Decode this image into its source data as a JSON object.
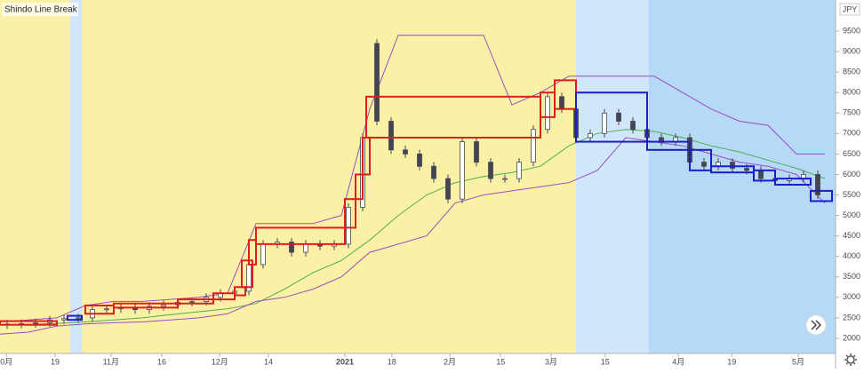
{
  "chart_data": {
    "type": "candlestick",
    "title": "Shindo Line Break",
    "currency": "JPY",
    "xlim": [
      0,
      117.5
    ],
    "ylim": [
      1630,
      10260
    ],
    "yticks": [
      2000,
      2500,
      3000,
      3500,
      4000,
      4500,
      5000,
      5500,
      6000,
      6500,
      7000,
      7500,
      8000,
      8500,
      9000,
      9500
    ],
    "xticks": [
      {
        "value": 0.9,
        "label": "0月"
      },
      {
        "value": 7.75,
        "label": "19"
      },
      {
        "value": 15.6,
        "label": "11月"
      },
      {
        "value": 22.75,
        "label": "16"
      },
      {
        "value": 30.9,
        "label": "12月"
      },
      {
        "value": 37.75,
        "label": "14"
      },
      {
        "value": 48.5,
        "label": "2021"
      },
      {
        "value": 55.1,
        "label": "18"
      },
      {
        "value": 63.25,
        "label": "2月"
      },
      {
        "value": 70.4,
        "label": "15"
      },
      {
        "value": 77.5,
        "label": "3月"
      },
      {
        "value": 85.1,
        "label": "15"
      },
      {
        "value": 95.4,
        "label": "4月"
      },
      {
        "value": 102.9,
        "label": "19"
      },
      {
        "value": 112.25,
        "label": "5月"
      }
    ],
    "candles": {
      "up_color": "#ffffff",
      "down_color": "#434651",
      "x": [
        1,
        3,
        5,
        7,
        9,
        11,
        13,
        15,
        17,
        19,
        21,
        23,
        25,
        27,
        29,
        31,
        33,
        35,
        37,
        39,
        41,
        43,
        45,
        47,
        49,
        51,
        53,
        55,
        57,
        59,
        61,
        63,
        65,
        67,
        69,
        71,
        73,
        75,
        77,
        79,
        81,
        83,
        85,
        87,
        89,
        91,
        93,
        95,
        97,
        99,
        101,
        103,
        105,
        107,
        109,
        111,
        113,
        115
      ],
      "open": [
        2330,
        2350,
        2360,
        2380,
        2450,
        2480,
        2500,
        2700,
        2720,
        2760,
        2700,
        2780,
        2820,
        2880,
        2900,
        3000,
        3100,
        3150,
        3800,
        4300,
        4350,
        4100,
        4300,
        4250,
        4300,
        5200,
        9200,
        7300,
        6600,
        6500,
        6200,
        5900,
        5400,
        6800,
        6300,
        5900,
        5900,
        6300,
        7100,
        7900,
        7600,
        6900,
        7000,
        7500,
        7300,
        7100,
        6900,
        6800,
        6900,
        6300,
        6200,
        6300,
        6150,
        6100,
        5900,
        5850,
        5900,
        6000
      ],
      "high": [
        2450,
        2460,
        2480,
        2550,
        2580,
        2600,
        2800,
        2820,
        2860,
        2860,
        2880,
        2920,
        2980,
        3000,
        3100,
        3200,
        3250,
        3900,
        4400,
        4450,
        4450,
        4400,
        4400,
        4400,
        5300,
        7000,
        9300,
        7400,
        6700,
        6600,
        6300,
        6000,
        6900,
        6900,
        6400,
        6000,
        6400,
        7200,
        8000,
        8000,
        7700,
        7100,
        7600,
        7600,
        7400,
        7200,
        7000,
        7000,
        7000,
        6400,
        6400,
        6400,
        6250,
        6200,
        6000,
        6000,
        6100,
        6100
      ],
      "low": [
        2230,
        2250,
        2260,
        2280,
        2350,
        2380,
        2400,
        2600,
        2620,
        2600,
        2600,
        2680,
        2720,
        2780,
        2800,
        2900,
        3000,
        3050,
        3700,
        4200,
        4000,
        4000,
        4150,
        4150,
        4200,
        5100,
        7200,
        6500,
        6400,
        6100,
        5800,
        5300,
        5300,
        6200,
        5800,
        5800,
        5800,
        6200,
        7000,
        7500,
        6800,
        6800,
        6900,
        7200,
        7000,
        6800,
        6700,
        6700,
        6200,
        6100,
        6100,
        6050,
        6000,
        5800,
        5750,
        5750,
        5800,
        5400
      ],
      "close": [
        2350,
        2360,
        2380,
        2450,
        2480,
        2500,
        2700,
        2720,
        2760,
        2700,
        2780,
        2820,
        2880,
        2900,
        3000,
        3100,
        3150,
        3800,
        4300,
        4350,
        4100,
        4300,
        4250,
        4300,
        5200,
        6900,
        7300,
        6600,
        6500,
        6200,
        5900,
        5400,
        6800,
        6300,
        5900,
        5900,
        6300,
        7100,
        7900,
        7600,
        6900,
        7000,
        7500,
        7300,
        7100,
        6900,
        6800,
        6900,
        6300,
        6200,
        6300,
        6150,
        6100,
        5900,
        5850,
        5900,
        6000,
        5500
      ]
    },
    "line_x": [
      0,
      4,
      8,
      12,
      16,
      20,
      24,
      28,
      32,
      36,
      40,
      44,
      48,
      52,
      56,
      60,
      64,
      68,
      72,
      76,
      80,
      84,
      88,
      92,
      96,
      100,
      104,
      108,
      112,
      116
    ],
    "lines": [
      {
        "color": "#4caf50",
        "values": [
          2330,
          2340,
          2360,
          2400,
          2450,
          2500,
          2580,
          2650,
          2720,
          2850,
          3200,
          3600,
          3900,
          4400,
          5000,
          5500,
          5800,
          5950,
          6050,
          6200,
          6700,
          7000,
          7100,
          7050,
          6900,
          6700,
          6550,
          6350,
          6150,
          5900
        ]
      },
      {
        "color": "#9c4dbf",
        "values": [
          2400,
          2450,
          2500,
          2800,
          2900,
          2900,
          2950,
          3000,
          3100,
          4800,
          4800,
          4800,
          5000,
          7600,
          9400,
          9400,
          9400,
          9400,
          7700,
          8000,
          8400,
          8400,
          8400,
          8400,
          8000,
          7600,
          7300,
          7200,
          6500,
          6500
        ]
      },
      {
        "color": "#9c4dbf",
        "values": [
          2100,
          2150,
          2300,
          2350,
          2380,
          2400,
          2450,
          2500,
          2600,
          2900,
          3000,
          3200,
          3500,
          4100,
          4300,
          4500,
          5300,
          5500,
          5600,
          5700,
          5800,
          6100,
          6900,
          6800,
          6700,
          6500,
          6300,
          6200,
          6000,
          5300
        ]
      }
    ],
    "brick_sets": [
      {
        "color": "#e01c1c",
        "bricks": [
          [
            0,
            8,
            2330,
            2420
          ],
          [
            12,
            16,
            2600,
            2800
          ],
          [
            16,
            25,
            2750,
            2850
          ],
          [
            25,
            30,
            2850,
            2950
          ],
          [
            30,
            33,
            2950,
            3100
          ],
          [
            33,
            34.5,
            3050,
            3250
          ],
          [
            34,
            35.5,
            3250,
            3900
          ],
          [
            35,
            36,
            3800,
            4400
          ],
          [
            36,
            48.5,
            4300,
            4700
          ],
          [
            48.5,
            50,
            4700,
            5400
          ],
          [
            50,
            51,
            5400,
            6000
          ],
          [
            51,
            52,
            6000,
            6900
          ],
          [
            51.5,
            76,
            6900,
            7900
          ],
          [
            76,
            78,
            7400,
            8000
          ],
          [
            78,
            81,
            7600,
            8300
          ]
        ]
      },
      {
        "color": "#1c1cc8",
        "bricks": [
          [
            9.5,
            11.5,
            2450,
            2550
          ],
          [
            81,
            91,
            6800,
            8000
          ],
          [
            91,
            97,
            6600,
            6800
          ],
          [
            97,
            100,
            6100,
            6600
          ],
          [
            100,
            106,
            6050,
            6200
          ],
          [
            106,
            109,
            5850,
            6100
          ],
          [
            109,
            114,
            5750,
            5900
          ],
          [
            114,
            117,
            5350,
            5600
          ]
        ]
      }
    ]
  }
}
